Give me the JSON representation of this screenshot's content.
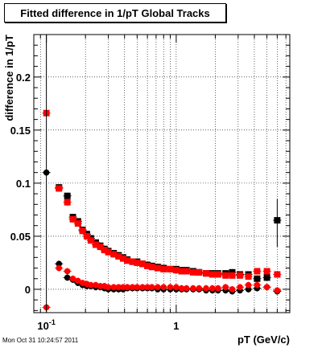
{
  "chart_data": {
    "type": "scatter",
    "title": "Fitted difference in 1/pT  Global Tracks",
    "xlabel": "pT (GeV/c)",
    "ylabel": "difference in 1/pT",
    "x_scale": "log",
    "xlim": [
      0.08,
      7.5
    ],
    "ylim": [
      -0.022,
      0.24
    ],
    "grid": true,
    "x_tick_labels": [
      {
        "value": 0.1,
        "base": "10",
        "exponent": "-1"
      },
      {
        "value": 1,
        "base": "1",
        "exponent": ""
      }
    ],
    "y_ticks": [
      {
        "value": 0,
        "label": "0"
      },
      {
        "value": 0.05,
        "label": "0.05"
      },
      {
        "value": 0.1,
        "label": "0.1"
      },
      {
        "value": 0.15,
        "label": "0.15"
      },
      {
        "value": 0.2,
        "label": "0.2"
      }
    ],
    "series": [
      {
        "color": "#000000",
        "marker": "circle",
        "points": [
          [
            0.1,
            0.11
          ],
          [
            0.125,
            0.024
          ],
          [
            0.145,
            0.011
          ],
          [
            0.16,
            0.009
          ],
          [
            0.175,
            0.006
          ],
          [
            0.19,
            0.004
          ],
          [
            0.205,
            0.003
          ],
          [
            0.22,
            0.003
          ],
          [
            0.24,
            0.002
          ],
          [
            0.26,
            0.002
          ],
          [
            0.28,
            0.001
          ],
          [
            0.3,
            0.0
          ],
          [
            0.33,
            0.0
          ],
          [
            0.36,
            0.0
          ],
          [
            0.39,
            0.0
          ],
          [
            0.42,
            0.001
          ],
          [
            0.46,
            0.001
          ],
          [
            0.5,
            0.001
          ],
          [
            0.55,
            0.001
          ],
          [
            0.6,
            0.001
          ],
          [
            0.65,
            0.001
          ],
          [
            0.72,
            0.0
          ],
          [
            0.8,
            0.0
          ],
          [
            0.9,
            0.0
          ],
          [
            1.0,
            0.0
          ],
          [
            1.1,
            0.0
          ],
          [
            1.2,
            0.0
          ],
          [
            1.35,
            0.0
          ],
          [
            1.5,
            0.0
          ],
          [
            1.7,
            -0.001
          ],
          [
            1.9,
            -0.001
          ],
          [
            2.1,
            -0.001
          ],
          [
            2.4,
            -0.001
          ],
          [
            2.7,
            -0.002
          ],
          [
            3.1,
            -0.001
          ],
          [
            3.6,
            0.0
          ],
          [
            4.2,
            0.001
          ],
          [
            5.0,
            0.002
          ],
          [
            6.0,
            -0.002
          ]
        ]
      },
      {
        "color": "#000000",
        "marker": "square",
        "points": [
          [
            0.125,
            0.096
          ],
          [
            0.145,
            0.088
          ],
          [
            0.16,
            0.068
          ],
          [
            0.175,
            0.064
          ],
          [
            0.19,
            0.056
          ],
          [
            0.205,
            0.052
          ],
          [
            0.22,
            0.048
          ],
          [
            0.24,
            0.044
          ],
          [
            0.26,
            0.041
          ],
          [
            0.28,
            0.038
          ],
          [
            0.3,
            0.036
          ],
          [
            0.33,
            0.034
          ],
          [
            0.36,
            0.032
          ],
          [
            0.39,
            0.03
          ],
          [
            0.42,
            0.028
          ],
          [
            0.46,
            0.026
          ],
          [
            0.5,
            0.026
          ],
          [
            0.55,
            0.024
          ],
          [
            0.6,
            0.023
          ],
          [
            0.65,
            0.022
          ],
          [
            0.72,
            0.021
          ],
          [
            0.8,
            0.02
          ],
          [
            0.9,
            0.019
          ],
          [
            1.0,
            0.019
          ],
          [
            1.1,
            0.018
          ],
          [
            1.2,
            0.018
          ],
          [
            1.35,
            0.017
          ],
          [
            1.5,
            0.016
          ],
          [
            1.7,
            0.015
          ],
          [
            1.9,
            0.015
          ],
          [
            2.1,
            0.015
          ],
          [
            2.4,
            0.015
          ],
          [
            2.7,
            0.016
          ],
          [
            3.1,
            0.014
          ],
          [
            3.6,
            0.014
          ],
          [
            4.2,
            0.01
          ],
          [
            5.0,
            0.011
          ],
          [
            6.0,
            0.065
          ]
        ]
      },
      {
        "color": "#ff0000",
        "marker": "circle",
        "points": [
          [
            0.1,
            -0.017
          ],
          [
            0.125,
            0.02
          ],
          [
            0.145,
            0.017
          ],
          [
            0.16,
            0.01
          ],
          [
            0.175,
            0.008
          ],
          [
            0.19,
            0.006
          ],
          [
            0.205,
            0.005
          ],
          [
            0.22,
            0.004
          ],
          [
            0.24,
            0.004
          ],
          [
            0.26,
            0.003
          ],
          [
            0.28,
            0.003
          ],
          [
            0.3,
            0.002
          ],
          [
            0.33,
            0.002
          ],
          [
            0.36,
            0.002
          ],
          [
            0.39,
            0.002
          ],
          [
            0.42,
            0.002
          ],
          [
            0.46,
            0.002
          ],
          [
            0.5,
            0.002
          ],
          [
            0.55,
            0.002
          ],
          [
            0.6,
            0.002
          ],
          [
            0.65,
            0.002
          ],
          [
            0.72,
            0.002
          ],
          [
            0.8,
            0.002
          ],
          [
            0.9,
            0.002
          ],
          [
            1.0,
            0.002
          ],
          [
            1.1,
            0.001
          ],
          [
            1.2,
            0.001
          ],
          [
            1.35,
            0.001
          ],
          [
            1.5,
            0.001
          ],
          [
            1.7,
            0.001
          ],
          [
            1.9,
            0.001
          ],
          [
            2.1,
            0.001
          ],
          [
            2.4,
            0.002
          ],
          [
            2.7,
            0.0
          ],
          [
            3.1,
            0.002
          ],
          [
            3.6,
            0.004
          ],
          [
            4.2,
            0.004
          ],
          [
            5.0,
            0.002
          ],
          [
            6.0,
            -0.001
          ]
        ]
      },
      {
        "color": "#ff0000",
        "marker": "square",
        "points": [
          [
            0.1,
            0.166
          ],
          [
            0.125,
            0.095
          ],
          [
            0.145,
            0.082
          ],
          [
            0.16,
            0.066
          ],
          [
            0.175,
            0.062
          ],
          [
            0.19,
            0.055
          ],
          [
            0.205,
            0.05
          ],
          [
            0.22,
            0.046
          ],
          [
            0.24,
            0.042
          ],
          [
            0.26,
            0.04
          ],
          [
            0.28,
            0.037
          ],
          [
            0.3,
            0.035
          ],
          [
            0.33,
            0.033
          ],
          [
            0.36,
            0.031
          ],
          [
            0.39,
            0.029
          ],
          [
            0.42,
            0.027
          ],
          [
            0.46,
            0.026
          ],
          [
            0.5,
            0.025
          ],
          [
            0.55,
            0.024
          ],
          [
            0.6,
            0.022
          ],
          [
            0.65,
            0.021
          ],
          [
            0.72,
            0.02
          ],
          [
            0.8,
            0.019
          ],
          [
            0.9,
            0.019
          ],
          [
            1.0,
            0.018
          ],
          [
            1.1,
            0.017
          ],
          [
            1.2,
            0.017
          ],
          [
            1.35,
            0.016
          ],
          [
            1.5,
            0.016
          ],
          [
            1.7,
            0.015
          ],
          [
            1.9,
            0.014
          ],
          [
            2.1,
            0.014
          ],
          [
            2.4,
            0.013
          ],
          [
            2.7,
            0.013
          ],
          [
            3.1,
            0.013
          ],
          [
            3.6,
            0.012
          ],
          [
            4.2,
            0.017
          ],
          [
            5.0,
            0.017
          ],
          [
            6.0,
            0.014
          ]
        ]
      }
    ]
  },
  "timestamp": "Mon Oct 31 10:24:57 2011"
}
